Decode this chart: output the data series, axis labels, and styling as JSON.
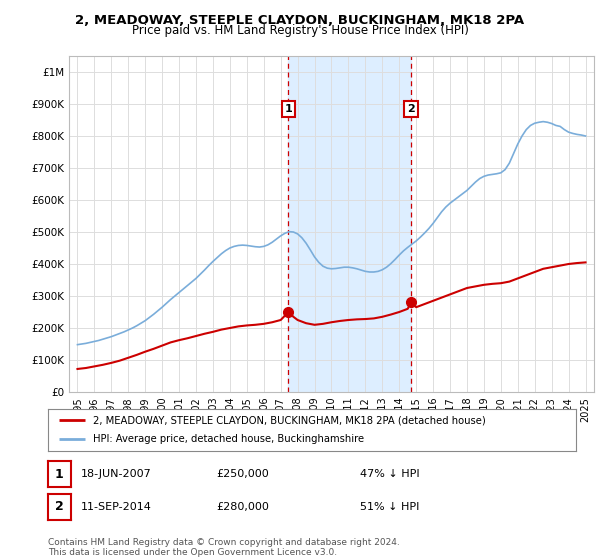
{
  "title": "2, MEADOWAY, STEEPLE CLAYDON, BUCKINGHAM, MK18 2PA",
  "subtitle": "Price paid vs. HM Land Registry's House Price Index (HPI)",
  "legend_property": "2, MEADOWAY, STEEPLE CLAYDON, BUCKINGHAM, MK18 2PA (detached house)",
  "legend_hpi": "HPI: Average price, detached house, Buckinghamshire",
  "footnote": "Contains HM Land Registry data © Crown copyright and database right 2024.\nThis data is licensed under the Open Government Licence v3.0.",
  "sale1_date": "18-JUN-2007",
  "sale1_price": 250000,
  "sale1_label": "1",
  "sale1_pct": "47% ↓ HPI",
  "sale2_date": "11-SEP-2014",
  "sale2_price": 280000,
  "sale2_label": "2",
  "sale2_pct": "51% ↓ HPI",
  "sale1_x": 2007.46,
  "sale2_x": 2014.7,
  "ylim": [
    0,
    1050000
  ],
  "xlim": [
    1994.5,
    2025.5
  ],
  "property_color": "#cc0000",
  "hpi_color": "#7aadda",
  "shade_color": "#ddeeff",
  "dashed_color": "#cc0000",
  "marker_box_color": "#cc0000",
  "bg_color": "#ffffff",
  "grid_color": "#dddddd",
  "yticks": [
    0,
    100000,
    200000,
    300000,
    400000,
    500000,
    600000,
    700000,
    800000,
    900000,
    1000000
  ],
  "ytick_labels": [
    "£0",
    "£100K",
    "£200K",
    "£300K",
    "£400K",
    "£500K",
    "£600K",
    "£700K",
    "£800K",
    "£900K",
    "£1M"
  ],
  "xticks": [
    1995,
    1996,
    1997,
    1998,
    1999,
    2000,
    2001,
    2002,
    2003,
    2004,
    2005,
    2006,
    2007,
    2008,
    2009,
    2010,
    2011,
    2012,
    2013,
    2014,
    2015,
    2016,
    2017,
    2018,
    2019,
    2020,
    2021,
    2022,
    2023,
    2024,
    2025
  ],
  "hpi_x": [
    1995.0,
    1995.25,
    1995.5,
    1995.75,
    1996.0,
    1996.25,
    1996.5,
    1996.75,
    1997.0,
    1997.25,
    1997.5,
    1997.75,
    1998.0,
    1998.25,
    1998.5,
    1998.75,
    1999.0,
    1999.25,
    1999.5,
    1999.75,
    2000.0,
    2000.25,
    2000.5,
    2000.75,
    2001.0,
    2001.25,
    2001.5,
    2001.75,
    2002.0,
    2002.25,
    2002.5,
    2002.75,
    2003.0,
    2003.25,
    2003.5,
    2003.75,
    2004.0,
    2004.25,
    2004.5,
    2004.75,
    2005.0,
    2005.25,
    2005.5,
    2005.75,
    2006.0,
    2006.25,
    2006.5,
    2006.75,
    2007.0,
    2007.25,
    2007.5,
    2007.75,
    2008.0,
    2008.25,
    2008.5,
    2008.75,
    2009.0,
    2009.25,
    2009.5,
    2009.75,
    2010.0,
    2010.25,
    2010.5,
    2010.75,
    2011.0,
    2011.25,
    2011.5,
    2011.75,
    2012.0,
    2012.25,
    2012.5,
    2012.75,
    2013.0,
    2013.25,
    2013.5,
    2013.75,
    2014.0,
    2014.25,
    2014.5,
    2014.75,
    2015.0,
    2015.25,
    2015.5,
    2015.75,
    2016.0,
    2016.25,
    2016.5,
    2016.75,
    2017.0,
    2017.25,
    2017.5,
    2017.75,
    2018.0,
    2018.25,
    2018.5,
    2018.75,
    2019.0,
    2019.25,
    2019.5,
    2019.75,
    2020.0,
    2020.25,
    2020.5,
    2020.75,
    2021.0,
    2021.25,
    2021.5,
    2021.75,
    2022.0,
    2022.25,
    2022.5,
    2022.75,
    2023.0,
    2023.25,
    2023.5,
    2023.75,
    2024.0,
    2024.25,
    2024.5,
    2024.75,
    2025.0
  ],
  "hpi_y": [
    148000,
    150000,
    152000,
    155000,
    158000,
    161000,
    165000,
    169000,
    173000,
    178000,
    183000,
    188000,
    194000,
    200000,
    207000,
    215000,
    223000,
    233000,
    243000,
    254000,
    265000,
    277000,
    289000,
    300000,
    311000,
    322000,
    333000,
    344000,
    355000,
    368000,
    381000,
    395000,
    408000,
    420000,
    432000,
    442000,
    450000,
    455000,
    458000,
    459000,
    458000,
    456000,
    454000,
    453000,
    455000,
    460000,
    468000,
    478000,
    488000,
    496000,
    501000,
    500000,
    494000,
    482000,
    465000,
    444000,
    422000,
    405000,
    393000,
    387000,
    385000,
    386000,
    388000,
    390000,
    390000,
    388000,
    385000,
    381000,
    377000,
    375000,
    375000,
    377000,
    382000,
    390000,
    401000,
    414000,
    428000,
    441000,
    452000,
    462000,
    472000,
    484000,
    497000,
    511000,
    527000,
    545000,
    563000,
    578000,
    590000,
    600000,
    610000,
    620000,
    630000,
    643000,
    656000,
    667000,
    674000,
    678000,
    680000,
    682000,
    685000,
    695000,
    715000,
    745000,
    775000,
    800000,
    820000,
    833000,
    840000,
    843000,
    845000,
    843000,
    839000,
    833000,
    830000,
    820000,
    812000,
    808000,
    805000,
    803000,
    800000
  ],
  "prop_x": [
    1995.0,
    1995.5,
    1996.0,
    1996.5,
    1997.0,
    1997.5,
    1998.0,
    1998.5,
    1999.0,
    1999.5,
    2000.0,
    2000.5,
    2001.0,
    2001.5,
    2002.0,
    2002.5,
    2003.0,
    2003.5,
    2004.0,
    2004.5,
    2005.0,
    2005.5,
    2006.0,
    2006.5,
    2007.0,
    2007.46,
    2007.75,
    2008.0,
    2008.5,
    2009.0,
    2009.5,
    2010.0,
    2010.5,
    2011.0,
    2011.5,
    2012.0,
    2012.5,
    2013.0,
    2013.5,
    2014.0,
    2014.5,
    2014.7,
    2015.0,
    2015.5,
    2016.0,
    2016.5,
    2017.0,
    2017.5,
    2018.0,
    2018.5,
    2019.0,
    2019.5,
    2020.0,
    2020.5,
    2021.0,
    2021.5,
    2022.0,
    2022.5,
    2023.0,
    2023.5,
    2024.0,
    2024.5,
    2025.0
  ],
  "prop_y": [
    72000,
    75000,
    80000,
    85000,
    91000,
    98000,
    107000,
    116000,
    126000,
    135000,
    145000,
    155000,
    162000,
    168000,
    175000,
    182000,
    188000,
    195000,
    200000,
    205000,
    208000,
    210000,
    213000,
    218000,
    225000,
    250000,
    235000,
    225000,
    215000,
    210000,
    213000,
    218000,
    222000,
    225000,
    227000,
    228000,
    230000,
    235000,
    242000,
    250000,
    260000,
    280000,
    265000,
    275000,
    285000,
    295000,
    305000,
    315000,
    325000,
    330000,
    335000,
    338000,
    340000,
    345000,
    355000,
    365000,
    375000,
    385000,
    390000,
    395000,
    400000,
    403000,
    405000
  ]
}
